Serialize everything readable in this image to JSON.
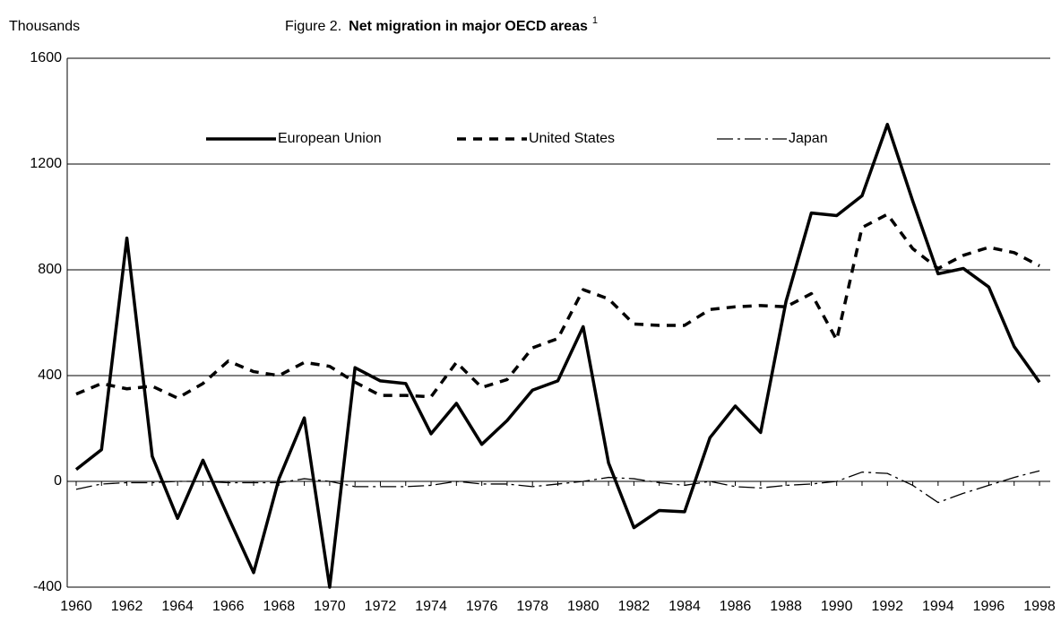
{
  "chart_data": {
    "type": "line",
    "title_prefix": "Figure 2.",
    "title": "Net migration in major OECD areas",
    "title_note": "1",
    "y_label": "Thousands",
    "x": [
      1960,
      1961,
      1962,
      1963,
      1964,
      1965,
      1966,
      1967,
      1968,
      1969,
      1970,
      1971,
      1972,
      1973,
      1974,
      1975,
      1976,
      1977,
      1978,
      1979,
      1980,
      1981,
      1982,
      1983,
      1984,
      1985,
      1986,
      1987,
      1988,
      1989,
      1990,
      1991,
      1992,
      1993,
      1994,
      1995,
      1996,
      1997,
      1998
    ],
    "series": [
      {
        "name": "European Union",
        "color": "#000000",
        "style": "solid",
        "values": [
          45,
          120,
          920,
          95,
          -140,
          80,
          -135,
          -345,
          10,
          240,
          -400,
          430,
          380,
          370,
          180,
          295,
          140,
          230,
          345,
          380,
          585,
          70,
          -175,
          -110,
          -115,
          165,
          285,
          185,
          680,
          1015,
          1005,
          1080,
          1350,
          1060,
          785,
          805,
          735,
          510,
          375
        ]
      },
      {
        "name": "United States",
        "color": "#000000",
        "style": "dashed",
        "values": [
          330,
          370,
          350,
          360,
          315,
          370,
          455,
          415,
          400,
          450,
          435,
          375,
          325,
          325,
          320,
          450,
          355,
          385,
          505,
          540,
          725,
          690,
          595,
          590,
          590,
          650,
          660,
          665,
          660,
          710,
          535,
          960,
          1010,
          880,
          805,
          855,
          885,
          865,
          815
        ]
      },
      {
        "name": "Japan",
        "color": "#000000",
        "style": "dashdot",
        "values": [
          -30,
          -10,
          -5,
          -5,
          0,
          0,
          -5,
          -5,
          -5,
          10,
          0,
          -20,
          -20,
          -20,
          -15,
          0,
          -10,
          -10,
          -20,
          -10,
          0,
          15,
          10,
          -5,
          -15,
          0,
          -20,
          -25,
          -15,
          -10,
          0,
          35,
          30,
          -15,
          -80,
          -45,
          -15,
          15,
          40
        ]
      }
    ],
    "xlim": [
      1960,
      1998
    ],
    "xticks": [
      1960,
      1962,
      1964,
      1966,
      1968,
      1970,
      1972,
      1974,
      1976,
      1978,
      1980,
      1982,
      1984,
      1986,
      1988,
      1990,
      1992,
      1994,
      1996,
      1998
    ],
    "ylim": [
      -400,
      1600
    ],
    "yticks": [
      -400,
      0,
      400,
      800,
      1200,
      1600
    ],
    "grid": true,
    "legend": "top"
  }
}
